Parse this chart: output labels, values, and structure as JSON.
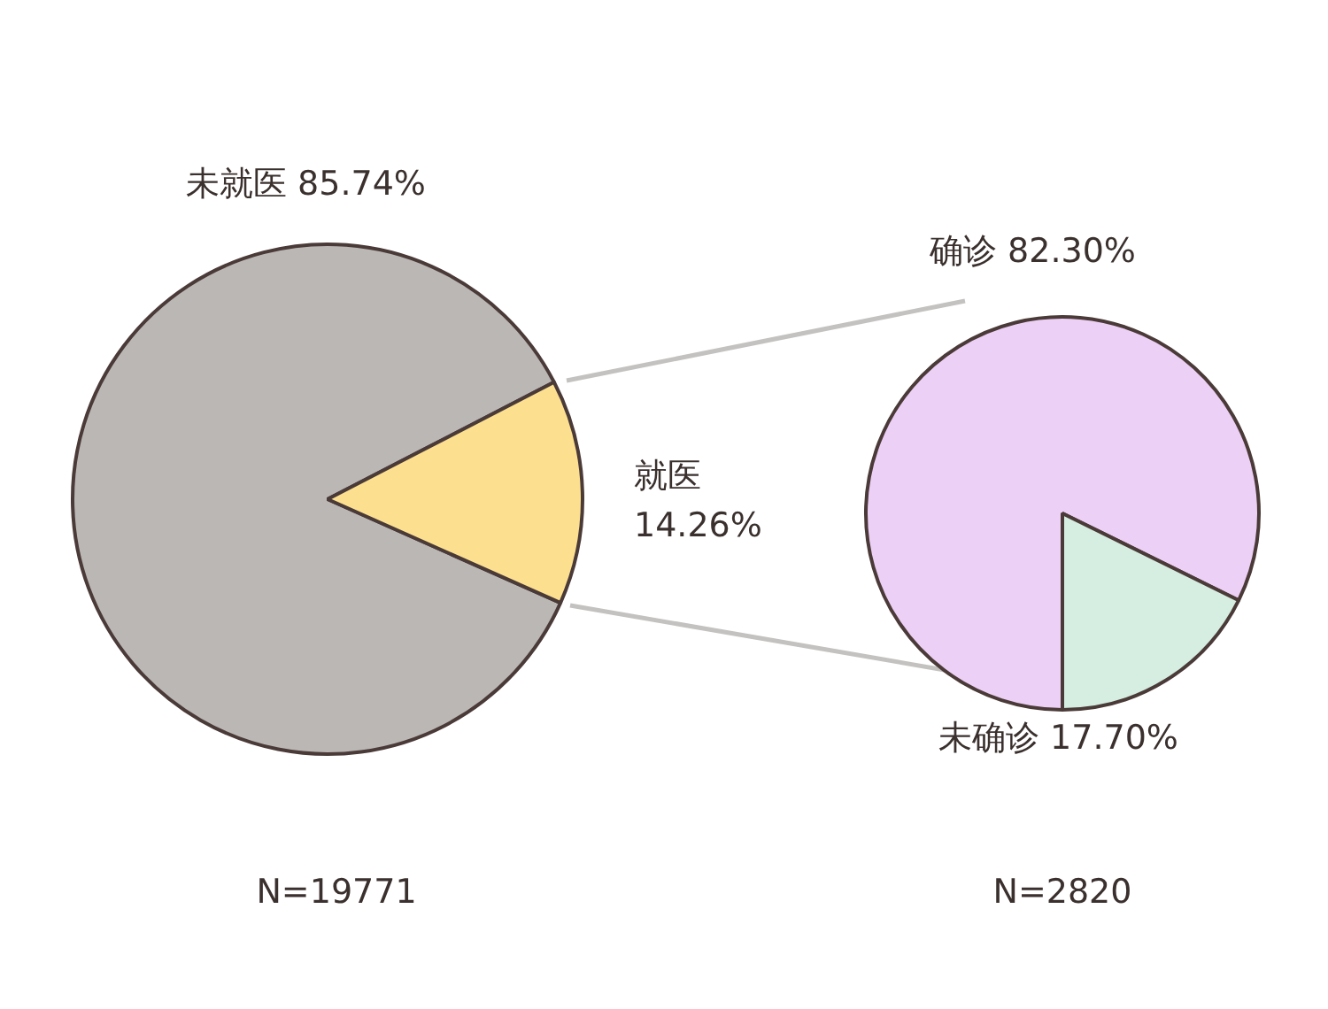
{
  "chart_data": [
    {
      "type": "pie",
      "categories": [
        "未就医",
        "就医"
      ],
      "values": [
        85.74,
        14.26
      ],
      "colors": [
        "#bab7b4",
        "#fde08f"
      ],
      "value_labels": [
        "85.74%",
        "14.26%"
      ],
      "legend": false,
      "annotations": [
        "N=19771"
      ]
    },
    {
      "type": "pie",
      "categories": [
        "确诊",
        "未确诊"
      ],
      "values": [
        82.3,
        17.7
      ],
      "colors": [
        "#edd0f6",
        "#d6ede1"
      ],
      "value_labels": [
        "82.30%",
        "17.70%"
      ],
      "legend": false,
      "annotations": [
        "N=2820"
      ]
    }
  ]
}
